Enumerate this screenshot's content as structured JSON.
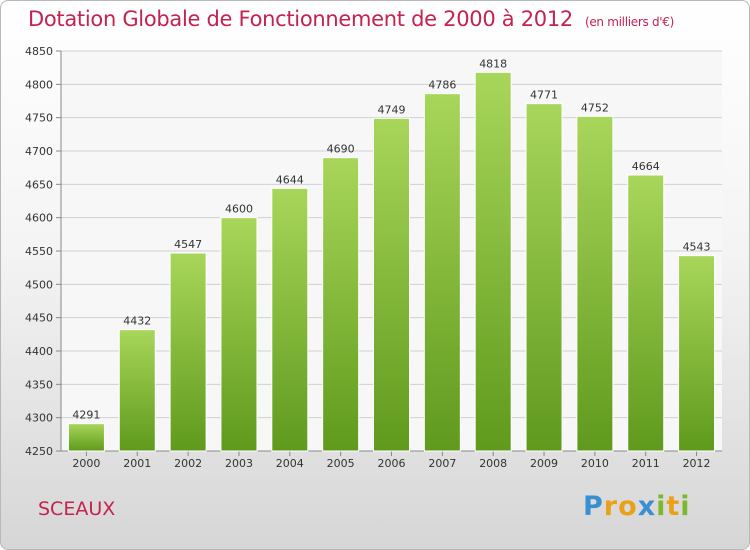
{
  "title": "Dotation Globale de Fonctionnement de 2000 à 2012",
  "unit_note": "(en milliers d'€)",
  "commune": "SCEAUX",
  "logo": {
    "text": "Proxiti",
    "letters": [
      "P",
      "r",
      "o",
      "x",
      "i",
      "t",
      "i"
    ]
  },
  "colors": {
    "title": "#c4224f",
    "bar_top": "#a8d65a",
    "bar_bottom": "#5f9a1c",
    "grid": "#d0d0d0"
  },
  "chart_data": {
    "type": "bar",
    "categories": [
      "2000",
      "2001",
      "2002",
      "2003",
      "2004",
      "2005",
      "2006",
      "2007",
      "2008",
      "2009",
      "2010",
      "2011",
      "2012"
    ],
    "values": [
      4291,
      4432,
      4547,
      4600,
      4644,
      4690,
      4749,
      4786,
      4818,
      4771,
      4752,
      4664,
      4543
    ],
    "ylim": [
      4250,
      4850
    ],
    "yticks": [
      4250,
      4300,
      4350,
      4400,
      4450,
      4500,
      4550,
      4600,
      4650,
      4700,
      4750,
      4800,
      4850
    ],
    "grid": true,
    "data_labels": true
  }
}
